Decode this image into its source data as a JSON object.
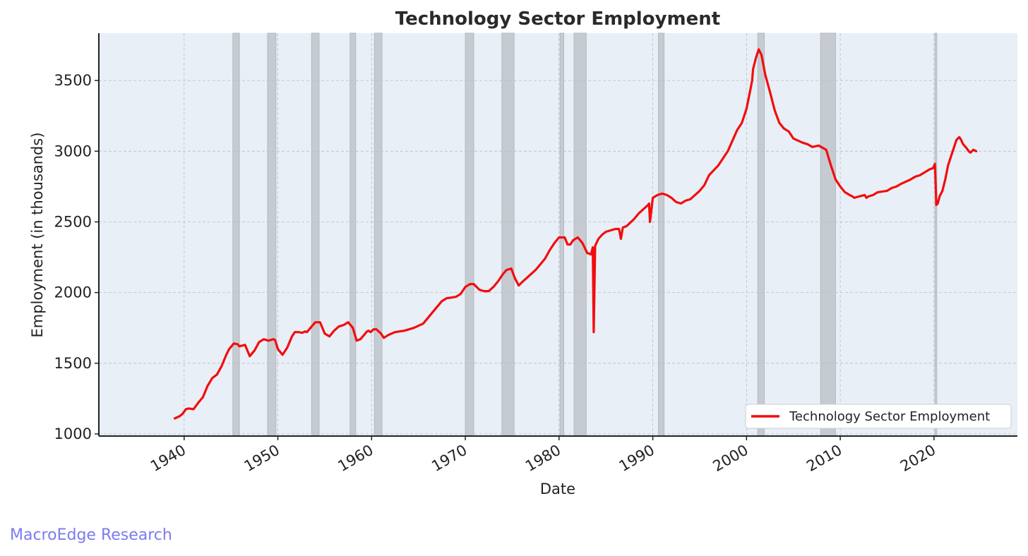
{
  "footer": {
    "text": "MacroEdge Research"
  },
  "chart_data": {
    "type": "line",
    "title": "Technology Sector Employment",
    "xlabel": "Date",
    "ylabel": "Employment (in thousands)",
    "xlim": [
      1930.9,
      2028.9
    ],
    "ylim": [
      985,
      3835
    ],
    "x_ticks": [
      1940,
      1950,
      1960,
      1970,
      1980,
      1990,
      2000,
      2010,
      2020
    ],
    "y_ticks": [
      1000,
      1500,
      2000,
      2500,
      3000,
      3500
    ],
    "grid": true,
    "legend": {
      "position": "bottom-right",
      "entries": [
        "Technology Sector Employment"
      ]
    },
    "colors": {
      "line": "#f20d0d",
      "background": "#e8eff7",
      "recession": "#c6cbd1",
      "grid": "#b8bec6"
    },
    "recession_bands": [
      [
        1945.2,
        1945.9
      ],
      [
        1948.9,
        1949.8
      ],
      [
        1953.6,
        1954.4
      ],
      [
        1957.7,
        1958.3
      ],
      [
        1960.3,
        1961.1
      ],
      [
        1970.0,
        1970.9
      ],
      [
        1973.9,
        1975.2
      ],
      [
        1980.1,
        1980.5
      ],
      [
        1981.6,
        1982.9
      ],
      [
        1990.6,
        1991.2
      ],
      [
        2001.2,
        2001.9
      ],
      [
        2007.9,
        2009.5
      ],
      [
        2020.1,
        2020.3
      ]
    ],
    "series": [
      {
        "name": "Technology Sector Employment",
        "x": [
          1939.0,
          1939.5,
          1939.8,
          1940.2,
          1940.5,
          1941.0,
          1941.5,
          1942.0,
          1942.5,
          1943.0,
          1943.5,
          1944.0,
          1944.5,
          1944.8,
          1945.3,
          1945.7,
          1945.9,
          1946.2,
          1946.5,
          1947.0,
          1947.5,
          1948.0,
          1948.5,
          1949.0,
          1949.5,
          1949.7,
          1950.0,
          1950.5,
          1951.0,
          1951.5,
          1951.8,
          1952.2,
          1952.6,
          1952.9,
          1953.1,
          1953.6,
          1954.0,
          1954.5,
          1955.0,
          1955.5,
          1956.0,
          1956.5,
          1957.0,
          1957.5,
          1958.0,
          1958.4,
          1958.8,
          1959.2,
          1959.5,
          1959.7,
          1959.9,
          1960.2,
          1960.5,
          1961.0,
          1961.3,
          1961.8,
          1962.5,
          1963.0,
          1963.5,
          1964.5,
          1965.5,
          1966.5,
          1967.5,
          1968.0,
          1969.0,
          1969.5,
          1970.0,
          1970.5,
          1970.9,
          1971.5,
          1972.0,
          1972.5,
          1973.0,
          1973.5,
          1974.0,
          1974.4,
          1974.9,
          1975.3,
          1975.7,
          1976.0,
          1977.0,
          1977.5,
          1978.0,
          1978.5,
          1979.0,
          1979.5,
          1980.0,
          1980.3,
          1980.6,
          1980.9,
          1981.2,
          1981.5,
          1982.0,
          1982.5,
          1983.0,
          1983.4,
          1983.6,
          1983.7,
          1983.85,
          1984.2,
          1984.6,
          1985.0,
          1985.5,
          1986.0,
          1986.4,
          1986.6,
          1986.8,
          1987.2,
          1988.0,
          1988.5,
          1989.0,
          1989.5,
          1989.6,
          1989.7,
          1990.0,
          1990.5,
          1991.0,
          1991.5,
          1992.0,
          1992.5,
          1993.0,
          1993.5,
          1994.0,
          1995.0,
          1995.5,
          1996.0,
          1997.0,
          1998.0,
          1999.0,
          1999.5,
          2000.0,
          2000.4,
          2000.6,
          2000.7,
          2001.0,
          2001.3,
          2001.6,
          2002.0,
          2002.5,
          2003.0,
          2003.5,
          2004.0,
          2004.5,
          2005.0,
          2006.0,
          2006.5,
          2007.0,
          2007.7,
          2008.5,
          2009.0,
          2009.5,
          2010.0,
          2010.5,
          2011.0,
          2011.3,
          2011.5,
          2012.0,
          2012.6,
          2012.8,
          2013.0,
          2013.5,
          2014.0,
          2015.0,
          2015.5,
          2016.0,
          2016.5,
          2017.5,
          2018.0,
          2018.5,
          2019.0,
          2019.5,
          2019.9,
          2020.1,
          2020.25,
          2020.4,
          2020.6,
          2020.9,
          2021.2,
          2021.5,
          2022.0,
          2022.4,
          2022.7,
          2022.9,
          2023.1,
          2023.5,
          2023.7,
          2023.9,
          2024.2,
          2024.5
        ],
        "values": [
          1110,
          1125,
          1140,
          1175,
          1180,
          1175,
          1220,
          1260,
          1340,
          1395,
          1420,
          1480,
          1560,
          1600,
          1640,
          1635,
          1620,
          1625,
          1630,
          1550,
          1590,
          1650,
          1670,
          1660,
          1670,
          1665,
          1600,
          1560,
          1610,
          1690,
          1720,
          1720,
          1715,
          1725,
          1720,
          1760,
          1790,
          1790,
          1710,
          1690,
          1730,
          1760,
          1770,
          1790,
          1750,
          1660,
          1670,
          1700,
          1725,
          1730,
          1720,
          1740,
          1740,
          1710,
          1680,
          1700,
          1720,
          1725,
          1730,
          1750,
          1780,
          1860,
          1940,
          1960,
          1970,
          1990,
          2040,
          2060,
          2060,
          2020,
          2010,
          2010,
          2040,
          2080,
          2130,
          2160,
          2170,
          2100,
          2050,
          2070,
          2130,
          2160,
          2200,
          2240,
          2300,
          2350,
          2390,
          2390,
          2390,
          2340,
          2340,
          2370,
          2390,
          2350,
          2280,
          2270,
          2320,
          1720,
          2330,
          2380,
          2410,
          2430,
          2440,
          2450,
          2450,
          2380,
          2460,
          2470,
          2520,
          2560,
          2590,
          2620,
          2630,
          2500,
          2670,
          2690,
          2700,
          2690,
          2670,
          2640,
          2630,
          2650,
          2660,
          2720,
          2760,
          2830,
          2900,
          3000,
          3150,
          3200,
          3300,
          3430,
          3500,
          3580,
          3660,
          3720,
          3680,
          3540,
          3420,
          3290,
          3200,
          3160,
          3140,
          3090,
          3060,
          3050,
          3030,
          3040,
          3010,
          2900,
          2800,
          2750,
          2710,
          2690,
          2680,
          2670,
          2680,
          2690,
          2670,
          2680,
          2690,
          2710,
          2720,
          2740,
          2750,
          2770,
          2800,
          2820,
          2830,
          2850,
          2870,
          2880,
          2910,
          2620,
          2630,
          2680,
          2720,
          2800,
          2900,
          3000,
          3080,
          3100,
          3080,
          3050,
          3020,
          3000,
          2990,
          3010,
          3000
        ]
      }
    ]
  }
}
